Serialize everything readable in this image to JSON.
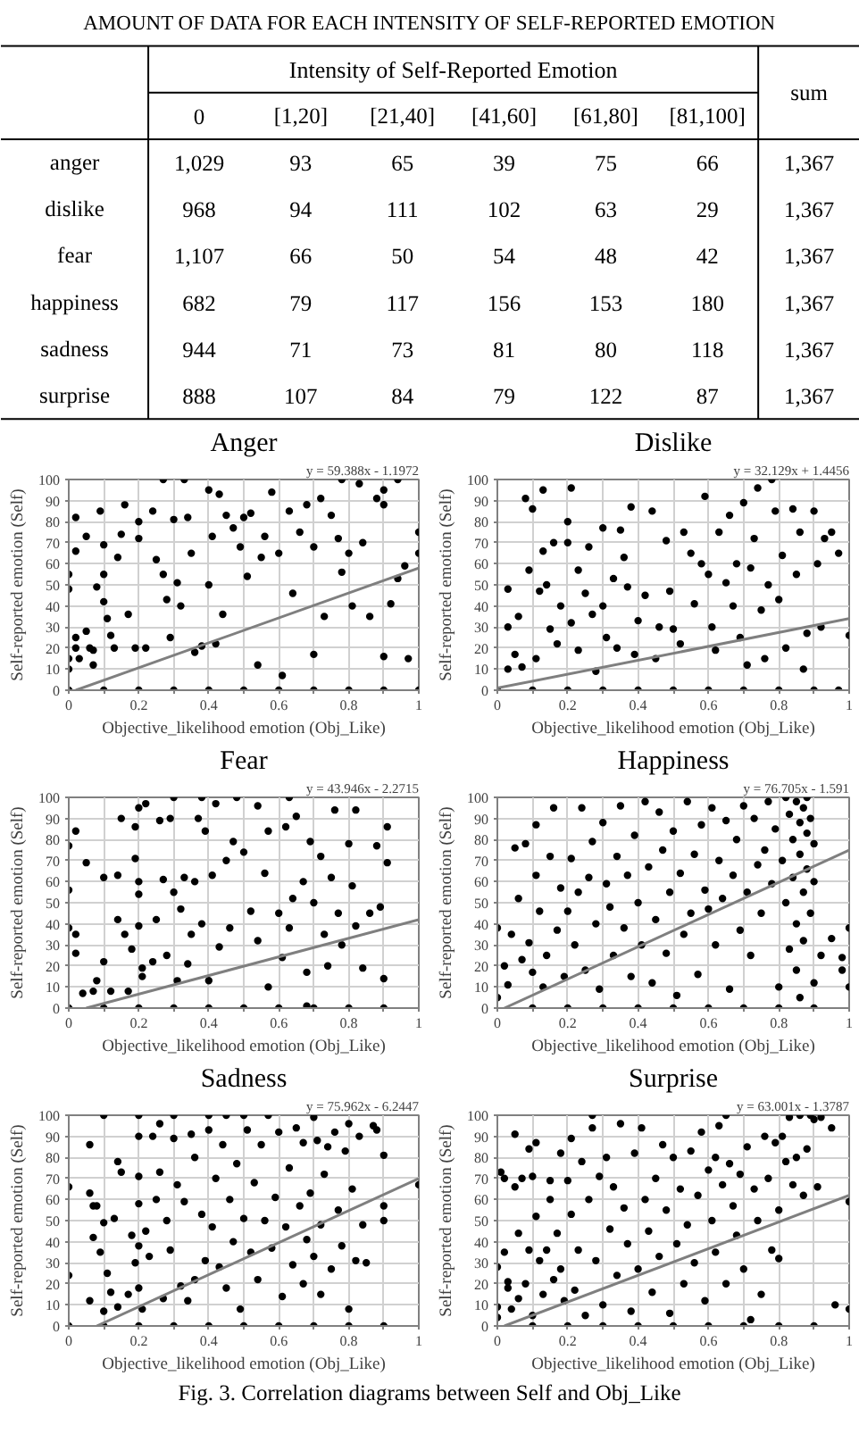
{
  "chart_data": [
    {
      "type": "heatmap",
      "title": "AMOUNT OF DATA FOR EACH INTENSITY OF SELF-REPORTED EMOTION",
      "xlabel": "Intensity of Self-Reported Emotion",
      "categories": [
        "0",
        "[1,20]",
        "[21,40]",
        "[41,60]",
        "[61,80]",
        "[81,100]",
        "sum"
      ],
      "y_categories": [
        "anger",
        "dislike",
        "fear",
        "happiness",
        "sadness",
        "surprise"
      ],
      "cells": [
        [
          1029,
          93,
          65,
          39,
          75,
          66,
          1367
        ],
        [
          968,
          94,
          111,
          102,
          63,
          29,
          1367
        ],
        [
          1107,
          66,
          50,
          54,
          48,
          42,
          1367
        ],
        [
          682,
          79,
          117,
          156,
          153,
          180,
          1367
        ],
        [
          944,
          71,
          73,
          81,
          80,
          118,
          1367
        ],
        [
          888,
          107,
          84,
          79,
          122,
          87,
          1367
        ]
      ],
      "cell_labels": [
        [
          "1,029",
          "93",
          "65",
          "39",
          "75",
          "66",
          "1,367"
        ],
        [
          "968",
          "94",
          "111",
          "102",
          "63",
          "29",
          "1,367"
        ],
        [
          "1,107",
          "66",
          "50",
          "54",
          "48",
          "42",
          "1,367"
        ],
        [
          "682",
          "79",
          "117",
          "156",
          "153",
          "180",
          "1,367"
        ],
        [
          "944",
          "71",
          "73",
          "81",
          "80",
          "118",
          "1,367"
        ],
        [
          "888",
          "107",
          "84",
          "79",
          "122",
          "87",
          "1,367"
        ]
      ]
    },
    {
      "type": "scatter",
      "title": "Anger",
      "xlabel": "Objective_likelihood emotion (Obj_Like)",
      "ylabel": "Self-reported emotion (Self)",
      "xlim": [
        0,
        1
      ],
      "xticks": [
        0,
        {
          "value": 0.1,
          "label": null
        },
        0.2,
        {
          "value": 0.3,
          "label": null
        },
        0.4,
        {
          "value": 0.5,
          "label": null
        },
        0.6,
        {
          "value": 0.7,
          "label": null
        },
        0.8,
        {
          "value": 0.9,
          "label": null
        },
        1
      ],
      "ylim": [
        0,
        100
      ],
      "yticks": [
        0,
        10,
        20,
        30,
        40,
        50,
        60,
        70,
        80,
        90,
        100
      ],
      "grid": true,
      "annotations": [
        "y = 59.388x - 1.1972"
      ],
      "series": [
        {
          "type": "scatter",
          "marker": "circle",
          "color": "#000000",
          "x": [
            0,
            0,
            0,
            0,
            0.02,
            0.02,
            0.02,
            0.02,
            0.03,
            0.05,
            0.05,
            0.06,
            0.07,
            0.07,
            0.08,
            0.09,
            0.1,
            0.1,
            0.1,
            0.11,
            0.12,
            0.13,
            0.14,
            0.15,
            0.16,
            0.17,
            0.19,
            0.2,
            0.2,
            0.22,
            0.24,
            0.25,
            0.27,
            0.28,
            0.29,
            0.3,
            0.31,
            0.32,
            0.34,
            0.35,
            0.36,
            0.38,
            0.4,
            0.4,
            0.41,
            0.42,
            0.43,
            0.44,
            0.45,
            0.47,
            0.49,
            0.5,
            0.51,
            0.52,
            0.54,
            0.55,
            0.56,
            0.58,
            0.6,
            0.61,
            0.63,
            0.64,
            0.66,
            0.68,
            0.7,
            0.7,
            0.72,
            0.73,
            0.75,
            0.77,
            0.78,
            0.8,
            0.81,
            0.83,
            0.84,
            0.86,
            0.88,
            0.9,
            0.9,
            0.9,
            0.92,
            0.94,
            0.96,
            0.97,
            1,
            1,
            0,
            0.1,
            0.2,
            0.3,
            0.4,
            0.5,
            0.6,
            0.7,
            0.8,
            0.9,
            1,
            0.27,
            0.33,
            0.78,
            0.94
          ],
          "values": [
            55,
            48,
            15,
            10,
            82,
            66,
            25,
            20,
            15,
            73,
            28,
            20,
            19,
            12,
            49,
            85,
            69,
            55,
            42,
            34,
            26,
            20,
            63,
            74,
            88,
            36,
            20,
            80,
            72,
            20,
            85,
            62,
            55,
            43,
            25,
            81,
            51,
            40,
            82,
            65,
            18,
            21,
            95,
            50,
            73,
            22,
            93,
            36,
            83,
            77,
            68,
            82,
            54,
            84,
            12,
            63,
            73,
            94,
            65,
            7,
            85,
            46,
            75,
            88,
            68,
            17,
            91,
            35,
            83,
            72,
            56,
            65,
            40,
            98,
            70,
            35,
            91,
            95,
            88,
            16,
            41,
            53,
            59,
            15,
            75,
            65,
            0,
            0,
            0,
            0,
            0,
            0,
            0,
            0,
            0,
            0,
            0,
            100,
            100,
            100,
            100
          ]
        },
        {
          "type": "line",
          "color": "#7f7f7f",
          "x": [
            0.02,
            1
          ],
          "values": [
            0,
            58
          ]
        }
      ]
    },
    {
      "type": "scatter",
      "title": "Dislike",
      "xlabel": "Objective_likelihood emotion (Obj_Like)",
      "ylabel": "Self-reported emotion (Self)",
      "xlim": [
        0,
        1
      ],
      "xticks": [
        0,
        {
          "value": 0.1,
          "label": null
        },
        0.2,
        {
          "value": 0.3,
          "label": null
        },
        0.4,
        {
          "value": 0.5,
          "label": null
        },
        0.6,
        {
          "value": 0.7,
          "label": null
        },
        0.8,
        {
          "value": 0.9,
          "label": null
        },
        1
      ],
      "ylim": [
        0,
        100
      ],
      "yticks": [
        0,
        10,
        20,
        30,
        40,
        50,
        60,
        70,
        80,
        90,
        100
      ],
      "grid": true,
      "annotations": [
        "y = 32.129x + 1.4456"
      ],
      "series": [
        {
          "type": "scatter",
          "marker": "circle",
          "color": "#000000",
          "x": [
            0,
            0.03,
            0.03,
            0.03,
            0.05,
            0.06,
            0.07,
            0.08,
            0.09,
            0.1,
            0.11,
            0.12,
            0.13,
            0.13,
            0.14,
            0.15,
            0.16,
            0.17,
            0.18,
            0.2,
            0.2,
            0.21,
            0.21,
            0.23,
            0.23,
            0.25,
            0.26,
            0.27,
            0.28,
            0.3,
            0.3,
            0.31,
            0.33,
            0.34,
            0.35,
            0.36,
            0.37,
            0.38,
            0.39,
            0.4,
            0.42,
            0.44,
            0.45,
            0.46,
            0.48,
            0.49,
            0.5,
            0.52,
            0.53,
            0.55,
            0.56,
            0.58,
            0.59,
            0.6,
            0.61,
            0.62,
            0.63,
            0.65,
            0.66,
            0.67,
            0.68,
            0.69,
            0.7,
            0.71,
            0.72,
            0.73,
            0.74,
            0.75,
            0.76,
            0.77,
            0.78,
            0.79,
            0.8,
            0.81,
            0.82,
            0.84,
            0.85,
            0.86,
            0.87,
            0.88,
            0.9,
            0.91,
            0.92,
            0.93,
            0.95,
            0.97,
            1,
            0.1,
            0.2,
            0.3,
            0.4,
            0.5,
            0.6,
            0.7,
            0.8,
            0.9,
            0.97
          ],
          "values": [
            0,
            48,
            30,
            10,
            17,
            35,
            11,
            91,
            57,
            86,
            15,
            47,
            95,
            66,
            50,
            29,
            70,
            22,
            40,
            80,
            70,
            96,
            32,
            19,
            57,
            46,
            68,
            36,
            9,
            77,
            40,
            25,
            53,
            20,
            76,
            63,
            49,
            87,
            17,
            33,
            45,
            85,
            15,
            30,
            71,
            47,
            29,
            22,
            75,
            65,
            41,
            60,
            92,
            55,
            30,
            19,
            75,
            51,
            83,
            40,
            60,
            25,
            89,
            12,
            58,
            72,
            96,
            38,
            15,
            50,
            100,
            85,
            43,
            64,
            20,
            86,
            55,
            75,
            10,
            27,
            85,
            60,
            30,
            72,
            75,
            65,
            26,
            0,
            0,
            0,
            0,
            0,
            0,
            0,
            0,
            0,
            0
          ]
        },
        {
          "type": "line",
          "color": "#7f7f7f",
          "x": [
            0,
            1
          ],
          "values": [
            1,
            34
          ]
        }
      ]
    },
    {
      "type": "scatter",
      "title": "Fear",
      "xlabel": "Objective_likelihood emotion (Obj_Like)",
      "ylabel": "Self-reported emotion (Self)",
      "xlim": [
        0,
        1
      ],
      "xticks": [
        0,
        {
          "value": 0.1,
          "label": null
        },
        0.2,
        {
          "value": 0.3,
          "label": null
        },
        0.4,
        {
          "value": 0.5,
          "label": null
        },
        0.6,
        {
          "value": 0.7,
          "label": null
        },
        0.8,
        {
          "value": 0.9,
          "label": null
        },
        1
      ],
      "ylim": [
        0,
        100
      ],
      "yticks": [
        0,
        10,
        20,
        30,
        40,
        50,
        60,
        70,
        80,
        90,
        100
      ],
      "grid": true,
      "annotations": [
        "y = 43.946x - 2.2715"
      ],
      "series": [
        {
          "type": "scatter",
          "marker": "circle",
          "color": "#000000",
          "x": [
            0,
            0,
            0,
            0,
            0.02,
            0.02,
            0.02,
            0.04,
            0.05,
            0.07,
            0.08,
            0.1,
            0.1,
            0.12,
            0.14,
            0.14,
            0.15,
            0.16,
            0.17,
            0.18,
            0.19,
            0.19,
            0.2,
            0.2,
            0.2,
            0.2,
            0.21,
            0.21,
            0.22,
            0.24,
            0.25,
            0.26,
            0.27,
            0.28,
            0.29,
            0.3,
            0.3,
            0.31,
            0.32,
            0.33,
            0.34,
            0.35,
            0.36,
            0.37,
            0.38,
            0.38,
            0.39,
            0.4,
            0.41,
            0.42,
            0.43,
            0.45,
            0.46,
            0.47,
            0.48,
            0.5,
            0.52,
            0.54,
            0.54,
            0.56,
            0.57,
            0.57,
            0.6,
            0.61,
            0.62,
            0.63,
            0.64,
            0.65,
            0.67,
            0.68,
            0.69,
            0.7,
            0.72,
            0.73,
            0.74,
            0.75,
            0.76,
            0.77,
            0.78,
            0.8,
            0.81,
            0.82,
            0.82,
            0.84,
            0.86,
            0.88,
            0.89,
            0.9,
            0.91,
            0.91,
            0.1,
            0.2,
            0.3,
            0.4,
            0.5,
            0.6,
            0.7,
            0.8,
            0.9,
            0.68,
            0.63
          ],
          "values": [
            77,
            56,
            38,
            0,
            84,
            35,
            26,
            7,
            69,
            8,
            13,
            22,
            62,
            8,
            63,
            42,
            90,
            35,
            8,
            28,
            71,
            86,
            95,
            60,
            54,
            39,
            19,
            15,
            97,
            22,
            42,
            89,
            61,
            25,
            90,
            100,
            55,
            13,
            47,
            62,
            21,
            35,
            60,
            90,
            100,
            40,
            84,
            13,
            63,
            97,
            29,
            70,
            38,
            79,
            100,
            74,
            46,
            96,
            32,
            64,
            84,
            10,
            45,
            24,
            86,
            38,
            52,
            91,
            60,
            17,
            79,
            50,
            72,
            35,
            20,
            62,
            94,
            45,
            30,
            78,
            58,
            94,
            39,
            19,
            45,
            77,
            48,
            14,
            69,
            86,
            0,
            0,
            0,
            0,
            0,
            0,
            0,
            0,
            0,
            1,
            100
          ]
        },
        {
          "type": "line",
          "color": "#7f7f7f",
          "x": [
            0.05,
            1
          ],
          "values": [
            0,
            42
          ]
        }
      ]
    },
    {
      "type": "scatter",
      "title": "Happiness",
      "xlabel": "Objective_likelihood emotion (Obj_Like)",
      "ylabel": "Self-reported emotion (Self)",
      "xlim": [
        0,
        1
      ],
      "xticks": [
        0,
        {
          "value": 0.1,
          "label": null
        },
        0.2,
        {
          "value": 0.3,
          "label": null
        },
        0.4,
        {
          "value": 0.5,
          "label": null
        },
        0.6,
        {
          "value": 0.7,
          "label": null
        },
        0.8,
        {
          "value": 0.9,
          "label": null
        },
        1
      ],
      "ylim": [
        0,
        100
      ],
      "yticks": [
        0,
        10,
        20,
        30,
        40,
        50,
        60,
        70,
        80,
        90,
        100
      ],
      "grid": true,
      "annotations": [
        "y = 76.705x - 1.591"
      ],
      "series": [
        {
          "type": "scatter",
          "marker": "circle",
          "color": "#000000",
          "x": [
            0,
            0,
            0.02,
            0.03,
            0.04,
            0.05,
            0.06,
            0.07,
            0.08,
            0.09,
            0.1,
            0.11,
            0.11,
            0.12,
            0.13,
            0.14,
            0.15,
            0.16,
            0.17,
            0.18,
            0.19,
            0.2,
            0.21,
            0.22,
            0.23,
            0.24,
            0.25,
            0.26,
            0.27,
            0.28,
            0.29,
            0.3,
            0.31,
            0.32,
            0.33,
            0.34,
            0.35,
            0.36,
            0.37,
            0.38,
            0.39,
            0.4,
            0.41,
            0.42,
            0.43,
            0.44,
            0.45,
            0.46,
            0.47,
            0.48,
            0.49,
            0.5,
            0.51,
            0.52,
            0.53,
            0.54,
            0.55,
            0.56,
            0.57,
            0.58,
            0.59,
            0.6,
            0.61,
            0.62,
            0.63,
            0.64,
            0.65,
            0.66,
            0.67,
            0.68,
            0.69,
            0.7,
            0.71,
            0.72,
            0.73,
            0.74,
            0.75,
            0.76,
            0.77,
            0.78,
            0.79,
            0.8,
            0.81,
            0.82,
            0.82,
            0.83,
            0.83,
            0.84,
            0.84,
            0.85,
            0.85,
            0.85,
            0.86,
            0.86,
            0.86,
            0.87,
            0.87,
            0.87,
            0.88,
            0.88,
            0.88,
            0.89,
            0.89,
            0.9,
            0.9,
            0.9,
            0.92,
            0.95,
            0.98,
            0.98,
            1,
            1,
            0.1,
            0.2,
            0.3,
            0.4,
            0.5,
            0.6,
            0.7,
            0.8,
            0.9
          ],
          "values": [
            38,
            5,
            20,
            11,
            35,
            76,
            52,
            23,
            78,
            31,
            17,
            87,
            63,
            46,
            10,
            25,
            72,
            95,
            37,
            57,
            15,
            46,
            71,
            30,
            55,
            95,
            18,
            62,
            79,
            40,
            9,
            88,
            59,
            48,
            25,
            72,
            96,
            38,
            63,
            15,
            82,
            50,
            30,
            98,
            67,
            12,
            42,
            93,
            75,
            26,
            55,
            84,
            6,
            64,
            35,
            98,
            45,
            73,
            16,
            87,
            56,
            47,
            95,
            30,
            70,
            52,
            89,
            9,
            63,
            80,
            37,
            96,
            55,
            25,
            90,
            68,
            45,
            75,
            98,
            59,
            85,
            10,
            70,
            100,
            50,
            92,
            28,
            80,
            62,
            98,
            40,
            18,
            88,
            73,
            5,
            95,
            55,
            32,
            100,
            83,
            66,
            45,
            90,
            78,
            60,
            12,
            25,
            33,
            24,
            18,
            10,
            38,
            0,
            0,
            0,
            0,
            0,
            0,
            0,
            0,
            0
          ]
        },
        {
          "type": "line",
          "color": "#7f7f7f",
          "x": [
            0.02,
            1
          ],
          "values": [
            0,
            75
          ]
        }
      ]
    },
    {
      "type": "scatter",
      "title": "Sadness",
      "xlabel": "Objective_likelihood emotion (Obj_Like)",
      "ylabel": "Self-reported emotion (Self)",
      "xlim": [
        0,
        1
      ],
      "xticks": [
        0,
        {
          "value": 0.1,
          "label": null
        },
        0.2,
        {
          "value": 0.3,
          "label": null
        },
        0.4,
        {
          "value": 0.5,
          "label": null
        },
        0.6,
        {
          "value": 0.7,
          "label": null
        },
        0.8,
        {
          "value": 0.9,
          "label": null
        },
        1
      ],
      "ylim": [
        0,
        100
      ],
      "yticks": [
        0,
        10,
        20,
        30,
        40,
        50,
        60,
        70,
        80,
        90,
        100
      ],
      "grid": true,
      "annotations": [
        "y = 75.962x - 6.2447"
      ],
      "series": [
        {
          "type": "scatter",
          "marker": "circle",
          "color": "#000000",
          "x": [
            0,
            0,
            0,
            0.06,
            0.06,
            0.06,
            0.07,
            0.07,
            0.08,
            0.09,
            0.1,
            0.1,
            0.11,
            0.12,
            0.13,
            0.14,
            0.14,
            0.15,
            0.17,
            0.18,
            0.19,
            0.2,
            0.2,
            0.2,
            0.2,
            0.2,
            0.21,
            0.22,
            0.23,
            0.24,
            0.25,
            0.26,
            0.26,
            0.27,
            0.28,
            0.29,
            0.3,
            0.31,
            0.32,
            0.33,
            0.34,
            0.35,
            0.36,
            0.36,
            0.38,
            0.39,
            0.4,
            0.4,
            0.41,
            0.42,
            0.43,
            0.44,
            0.45,
            0.46,
            0.47,
            0.48,
            0.49,
            0.5,
            0.51,
            0.52,
            0.53,
            0.54,
            0.55,
            0.56,
            0.57,
            0.58,
            0.59,
            0.6,
            0.61,
            0.62,
            0.63,
            0.64,
            0.65,
            0.66,
            0.67,
            0.67,
            0.68,
            0.69,
            0.7,
            0.7,
            0.71,
            0.72,
            0.72,
            0.73,
            0.74,
            0.75,
            0.76,
            0.77,
            0.78,
            0.79,
            0.8,
            0.8,
            0.81,
            0.82,
            0.83,
            0.84,
            0.85,
            0.87,
            0.88,
            0.9,
            0.9,
            0.9,
            1,
            0.1,
            0.2,
            0.3,
            0.45,
            0.5,
            0.1,
            0.2,
            0.3,
            0.4,
            0.5,
            0.6,
            0.7,
            0.8,
            0.9
          ],
          "values": [
            66,
            24,
            0,
            86,
            63,
            12,
            42,
            57,
            57,
            35,
            49,
            7,
            25,
            16,
            51,
            78,
            9,
            73,
            15,
            43,
            30,
            90,
            71,
            58,
            38,
            18,
            8,
            45,
            33,
            90,
            60,
            96,
            73,
            13,
            50,
            36,
            89,
            67,
            19,
            59,
            12,
            91,
            80,
            22,
            53,
            31,
            93,
            100,
            47,
            70,
            28,
            86,
            18,
            60,
            40,
            77,
            8,
            51,
            93,
            35,
            68,
            22,
            86,
            50,
            100,
            37,
            61,
            92,
            14,
            47,
            75,
            29,
            94,
            57,
            87,
            20,
            41,
            63,
            99,
            33,
            88,
            48,
            15,
            72,
            85,
            27,
            92,
            55,
            38,
            83,
            96,
            8,
            65,
            31,
            90,
            48,
            30,
            95,
            93,
            57,
            50,
            81,
            67,
            100,
            100,
            100,
            100,
            100,
            0,
            0,
            0,
            0,
            0,
            0,
            0,
            0,
            0
          ]
        },
        {
          "type": "line",
          "color": "#7f7f7f",
          "x": [
            0.08,
            1
          ],
          "values": [
            0,
            70
          ]
        }
      ]
    },
    {
      "type": "scatter",
      "title": "Surprise",
      "xlabel": "Objective_likelihood emotion (Obj_Like)",
      "ylabel": "Self-reported emotion (Self)",
      "xlim": [
        0,
        1
      ],
      "xticks": [
        0,
        {
          "value": 0.1,
          "label": null
        },
        0.2,
        {
          "value": 0.3,
          "label": null
        },
        0.4,
        {
          "value": 0.5,
          "label": null
        },
        0.6,
        {
          "value": 0.7,
          "label": null
        },
        0.8,
        {
          "value": 0.9,
          "label": null
        },
        1
      ],
      "ylim": [
        0,
        100
      ],
      "yticks": [
        0,
        10,
        20,
        30,
        40,
        50,
        60,
        70,
        80,
        90,
        100
      ],
      "grid": true,
      "annotations": [
        "y = 63.001x - 1.3787",
        "Fig. 3. Correlation diagrams between Self and Obj_Like"
      ],
      "series": [
        {
          "type": "scatter",
          "marker": "circle",
          "color": "#000000",
          "x": [
            0,
            0,
            0,
            0.01,
            0.02,
            0.02,
            0.03,
            0.03,
            0.04,
            0.05,
            0.05,
            0.06,
            0.06,
            0.07,
            0.08,
            0.09,
            0.09,
            0.1,
            0.1,
            0.11,
            0.11,
            0.12,
            0.13,
            0.14,
            0.15,
            0.15,
            0.16,
            0.17,
            0.18,
            0.18,
            0.19,
            0.2,
            0.21,
            0.21,
            0.22,
            0.23,
            0.24,
            0.25,
            0.26,
            0.27,
            0.28,
            0.29,
            0.3,
            0.31,
            0.32,
            0.33,
            0.34,
            0.35,
            0.36,
            0.37,
            0.38,
            0.39,
            0.4,
            0.41,
            0.42,
            0.43,
            0.44,
            0.45,
            0.46,
            0.47,
            0.48,
            0.49,
            0.5,
            0.51,
            0.52,
            0.53,
            0.54,
            0.55,
            0.56,
            0.57,
            0.58,
            0.59,
            0.6,
            0.61,
            0.62,
            0.62,
            0.63,
            0.64,
            0.65,
            0.66,
            0.67,
            0.68,
            0.69,
            0.7,
            0.71,
            0.72,
            0.73,
            0.74,
            0.75,
            0.76,
            0.77,
            0.78,
            0.79,
            0.8,
            0.8,
            0.81,
            0.82,
            0.83,
            0.84,
            0.85,
            0.86,
            0.87,
            0.88,
            0.89,
            0.9,
            0.91,
            0.92,
            0.95,
            0.96,
            1,
            1,
            0.1,
            0.2,
            0.3,
            0.4,
            0.5,
            0.6,
            0.7,
            0.8,
            0.9,
            0.27,
            0.65
          ],
          "values": [
            28,
            9,
            4,
            73,
            70,
            35,
            21,
            18,
            8,
            91,
            66,
            44,
            13,
            70,
            20,
            84,
            36,
            5,
            71,
            87,
            52,
            31,
            15,
            36,
            69,
            60,
            22,
            44,
            82,
            27,
            12,
            69,
            89,
            53,
            17,
            36,
            78,
            5,
            60,
            94,
            31,
            71,
            10,
            80,
            46,
            66,
            24,
            96,
            56,
            39,
            7,
            82,
            27,
            94,
            60,
            45,
            16,
            70,
            33,
            86,
            55,
            6,
            80,
            39,
            65,
            20,
            48,
            83,
            30,
            62,
            92,
            12,
            74,
            50,
            80,
            35,
            95,
            67,
            20,
            77,
            57,
            43,
            72,
            27,
            85,
            3,
            65,
            50,
            15,
            90,
            70,
            36,
            87,
            55,
            32,
            90,
            78,
            99,
            67,
            80,
            100,
            62,
            84,
            100,
            98,
            66,
            99,
            94,
            10,
            8,
            59,
            0,
            0,
            0,
            0,
            0,
            0,
            0,
            0,
            0,
            100,
            100
          ]
        },
        {
          "type": "line",
          "color": "#7f7f7f",
          "x": [
            0.02,
            1
          ],
          "values": [
            0,
            62
          ]
        }
      ]
    }
  ]
}
